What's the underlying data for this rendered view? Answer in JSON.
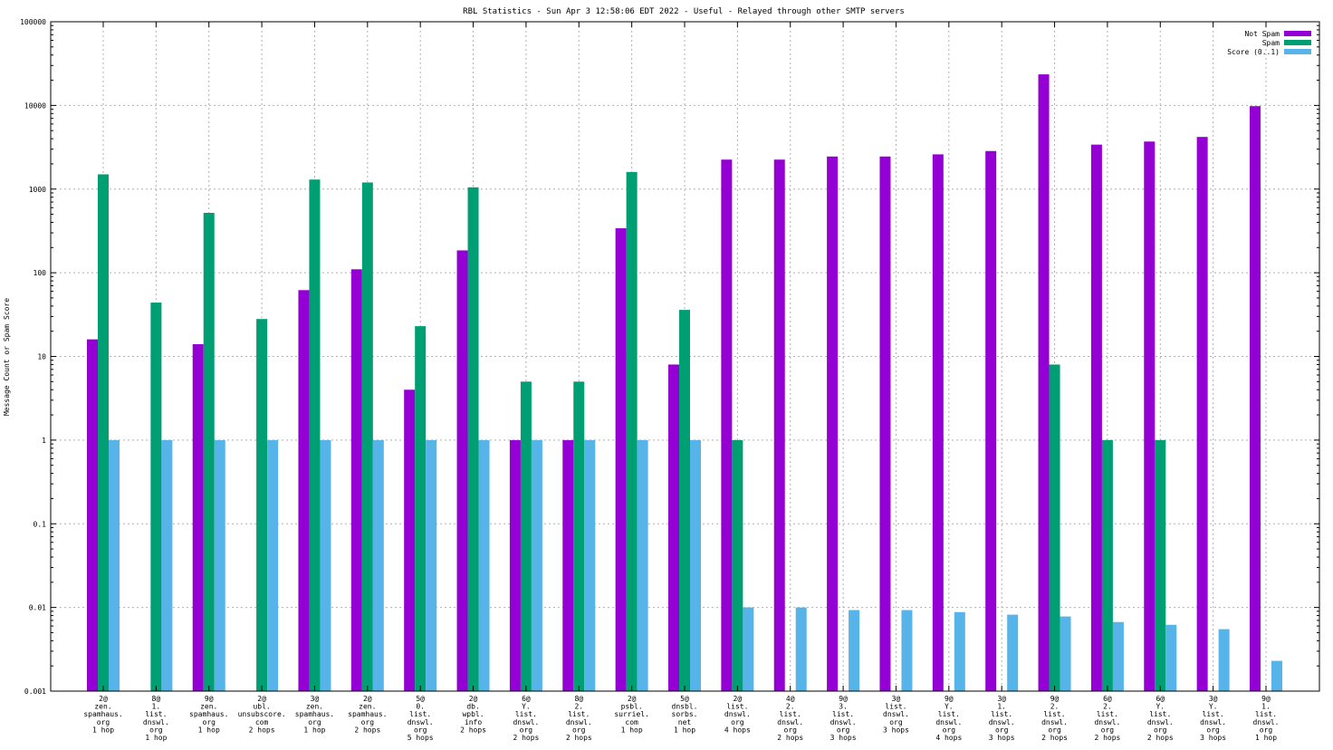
{
  "chart_data": {
    "type": "bar",
    "title": "RBL Statistics - Sun Apr  3 12:58:06 EDT 2022 - Useful - Relayed through other SMTP servers",
    "ylabel": "Message Count or Spam Score",
    "xlabel": "",
    "yscale": "log",
    "ylim": [
      0.001,
      100000
    ],
    "yticks": [
      "0.001",
      "0.01",
      "0.1",
      "1",
      "10",
      "100",
      "1000",
      "10000",
      "100000"
    ],
    "grid": true,
    "legend_position": "top-right",
    "categories": [
      [
        "2@",
        "zen.",
        "spamhaus.",
        "org",
        "1 hop"
      ],
      [
        "8@",
        "1.",
        "list.",
        "dnswl.",
        "org",
        "1 hop"
      ],
      [
        "9@",
        "zen.",
        "spamhaus.",
        "org",
        "1 hop"
      ],
      [
        "2@",
        "ubl.",
        "unsubscore.",
        "com",
        "2 hops"
      ],
      [
        "3@",
        "zen.",
        "spamhaus.",
        "org",
        "1 hop"
      ],
      [
        "2@",
        "zen.",
        "spamhaus.",
        "org",
        "2 hops"
      ],
      [
        "5@",
        "0.",
        "list.",
        "dnswl.",
        "org",
        "5 hops"
      ],
      [
        "2@",
        "db.",
        "wpbl.",
        "info",
        "2 hops"
      ],
      [
        "6@",
        "Y.",
        "list.",
        "dnswl.",
        "org",
        "2 hops"
      ],
      [
        "8@",
        "2.",
        "list.",
        "dnswl.",
        "org",
        "2 hops"
      ],
      [
        "2@",
        "psbl.",
        "surriel.",
        "com",
        "1 hop"
      ],
      [
        "5@",
        "dnsbl.",
        "sorbs.",
        "net",
        "1 hop"
      ],
      [
        "2@",
        "list.",
        "dnswl.",
        "org",
        "4 hops"
      ],
      [
        "4@",
        "2.",
        "list.",
        "dnswl.",
        "org",
        "2 hops"
      ],
      [
        "9@",
        "3.",
        "list.",
        "dnswl.",
        "org",
        "3 hops"
      ],
      [
        "3@",
        "list.",
        "dnswl.",
        "org",
        "3 hops"
      ],
      [
        "9@",
        "Y.",
        "list.",
        "dnswl.",
        "org",
        "4 hops"
      ],
      [
        "3@",
        "1.",
        "list.",
        "dnswl.",
        "org",
        "3 hops"
      ],
      [
        "9@",
        "2.",
        "list.",
        "dnswl.",
        "org",
        "2 hops"
      ],
      [
        "6@",
        "2.",
        "list.",
        "dnswl.",
        "org",
        "2 hops"
      ],
      [
        "6@",
        "Y.",
        "list.",
        "dnswl.",
        "org",
        "2 hops"
      ],
      [
        "3@",
        "Y.",
        "list.",
        "dnswl.",
        "org",
        "3 hops"
      ],
      [
        "9@",
        "1.",
        "list.",
        "dnswl.",
        "org",
        "1 hop"
      ]
    ],
    "series": [
      {
        "name": "Not Spam",
        "color": "#9400d3",
        "values": [
          16,
          null,
          14,
          null,
          62,
          110,
          4,
          185,
          1,
          1,
          340,
          8,
          2250,
          2250,
          2450,
          2450,
          2600,
          2850,
          23500,
          3400,
          3700,
          4200,
          9800
        ]
      },
      {
        "name": "Spam",
        "color": "#009e73",
        "values": [
          1500,
          44,
          520,
          28,
          1300,
          1200,
          23,
          1050,
          5,
          5,
          1600,
          36,
          1,
          null,
          null,
          null,
          null,
          null,
          8,
          1,
          1,
          null,
          null
        ]
      },
      {
        "name": "Score (0..1)",
        "color": "#56b4e9",
        "values": [
          1,
          1,
          1,
          1,
          1,
          1,
          1,
          1,
          1,
          1,
          1,
          1,
          0.01,
          0.01,
          0.0093,
          0.0093,
          0.0088,
          0.0082,
          0.0078,
          0.0067,
          0.0062,
          0.0055,
          0.0023
        ]
      }
    ]
  }
}
